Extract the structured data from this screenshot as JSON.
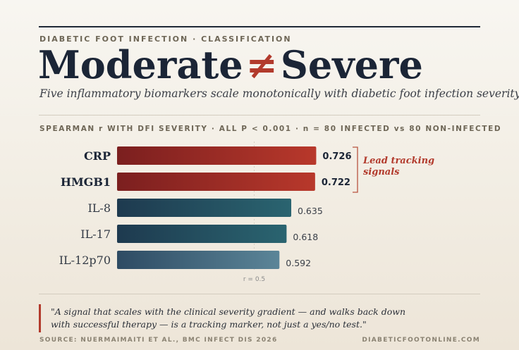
{
  "header": {
    "kicker": "DIABETIC FOOT INFECTION · CLASSIFICATION",
    "title_left": "Moderate",
    "title_symbol": "≠",
    "title_right": "Severe",
    "subtitle": "Five inflammatory biomarkers scale monotonically with diabetic foot infection severity"
  },
  "chart_kicker": "SPEARMAN r WITH DFI SEVERITY · ALL P < 0.001 · n = 80 INFECTED vs 80 NON-INFECTED",
  "chart_data": {
    "type": "bar",
    "orientation": "horizontal",
    "categories": [
      "CRP",
      "HMGB1",
      "IL-8",
      "IL-17",
      "IL-12p70"
    ],
    "values": [
      0.726,
      0.722,
      0.635,
      0.618,
      0.592
    ],
    "value_labels": [
      "0.726",
      "0.722",
      "0.635",
      "0.618",
      "0.592"
    ],
    "highlighted": [
      true,
      true,
      false,
      false,
      false
    ],
    "reference_line": {
      "value": 0.5,
      "label": "r = 0.5"
    },
    "xlim": [
      0,
      0.8
    ],
    "colors": {
      "highlight_start": "#7b1f1f",
      "highlight_end": "#b8382b",
      "normal_start": "#1e3a4f",
      "normal_end": "#2a6470",
      "light_start": "#2e4b63",
      "light_end": "#5b8598"
    },
    "annotation": "Lead tracking signals"
  },
  "quote": "\"A signal that scales with the clinical severity gradient — and walks back down with successful therapy — is a tracking marker, not just a yes/no test.\"",
  "footer": {
    "source": "SOURCE: NUERMAIMAITI ET AL., BMC INFECT DIS 2026",
    "site": "DIABETICFOOTONLINE.COM"
  }
}
